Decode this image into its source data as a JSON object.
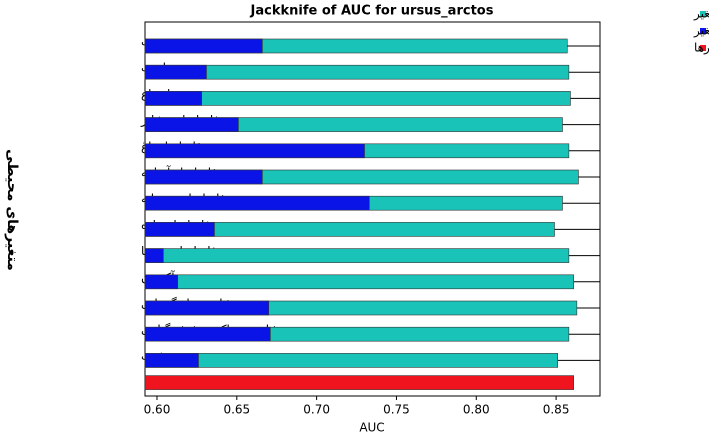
{
  "chart_data": {
    "type": "jackknife-bar",
    "title": "Jackknife of AUC for ursus_arctos",
    "x_label": "AUC",
    "y_label": "متغیرهای محیطی",
    "categories": [
      "جهت",
      "رطوبت",
      "ارتفاع",
      "فاصله از عشایر",
      "فاصله از باغ",
      "فاصله از آبراهه",
      "فاصله از رودخانه",
      "فاصله از جاده",
      "فاصله از روستا",
      "آکوتون",
      "شاخص بار گرمایی",
      "شاخص تراکم پوشش گیاهی",
      "شیب",
      null
    ],
    "series": [
      {
        "name": "بدون متغیر",
        "color": "#19c3b8",
        "values": [
          0.857,
          0.858,
          0.859,
          0.854,
          0.858,
          0.864,
          0.854,
          0.849,
          0.858,
          0.861,
          0.863,
          0.858,
          0.851,
          null
        ]
      },
      {
        "name": "تنها با یک متغیر",
        "color": "#0a14e6",
        "values": [
          0.666,
          0.631,
          0.628,
          0.651,
          0.73,
          0.666,
          0.733,
          0.636,
          0.604,
          0.613,
          0.67,
          0.671,
          0.626,
          null
        ]
      },
      {
        "name": "با تمام متغیرها",
        "color": "#f0141e",
        "values": [
          null,
          null,
          null,
          null,
          null,
          null,
          null,
          null,
          null,
          null,
          null,
          null,
          null,
          0.861
        ]
      }
    ],
    "xlim": [
      0.5925,
      0.8775
    ],
    "xticks": [
      {
        "value": 0.6,
        "label": "0.60"
      },
      {
        "value": 0.65,
        "label": "0.65"
      },
      {
        "value": 0.7,
        "label": "0.70"
      },
      {
        "value": 0.75,
        "label": "0.75"
      },
      {
        "value": 0.8,
        "label": "0.80"
      },
      {
        "value": 0.85,
        "label": "0.85"
      }
    ],
    "legend": "top-right"
  }
}
